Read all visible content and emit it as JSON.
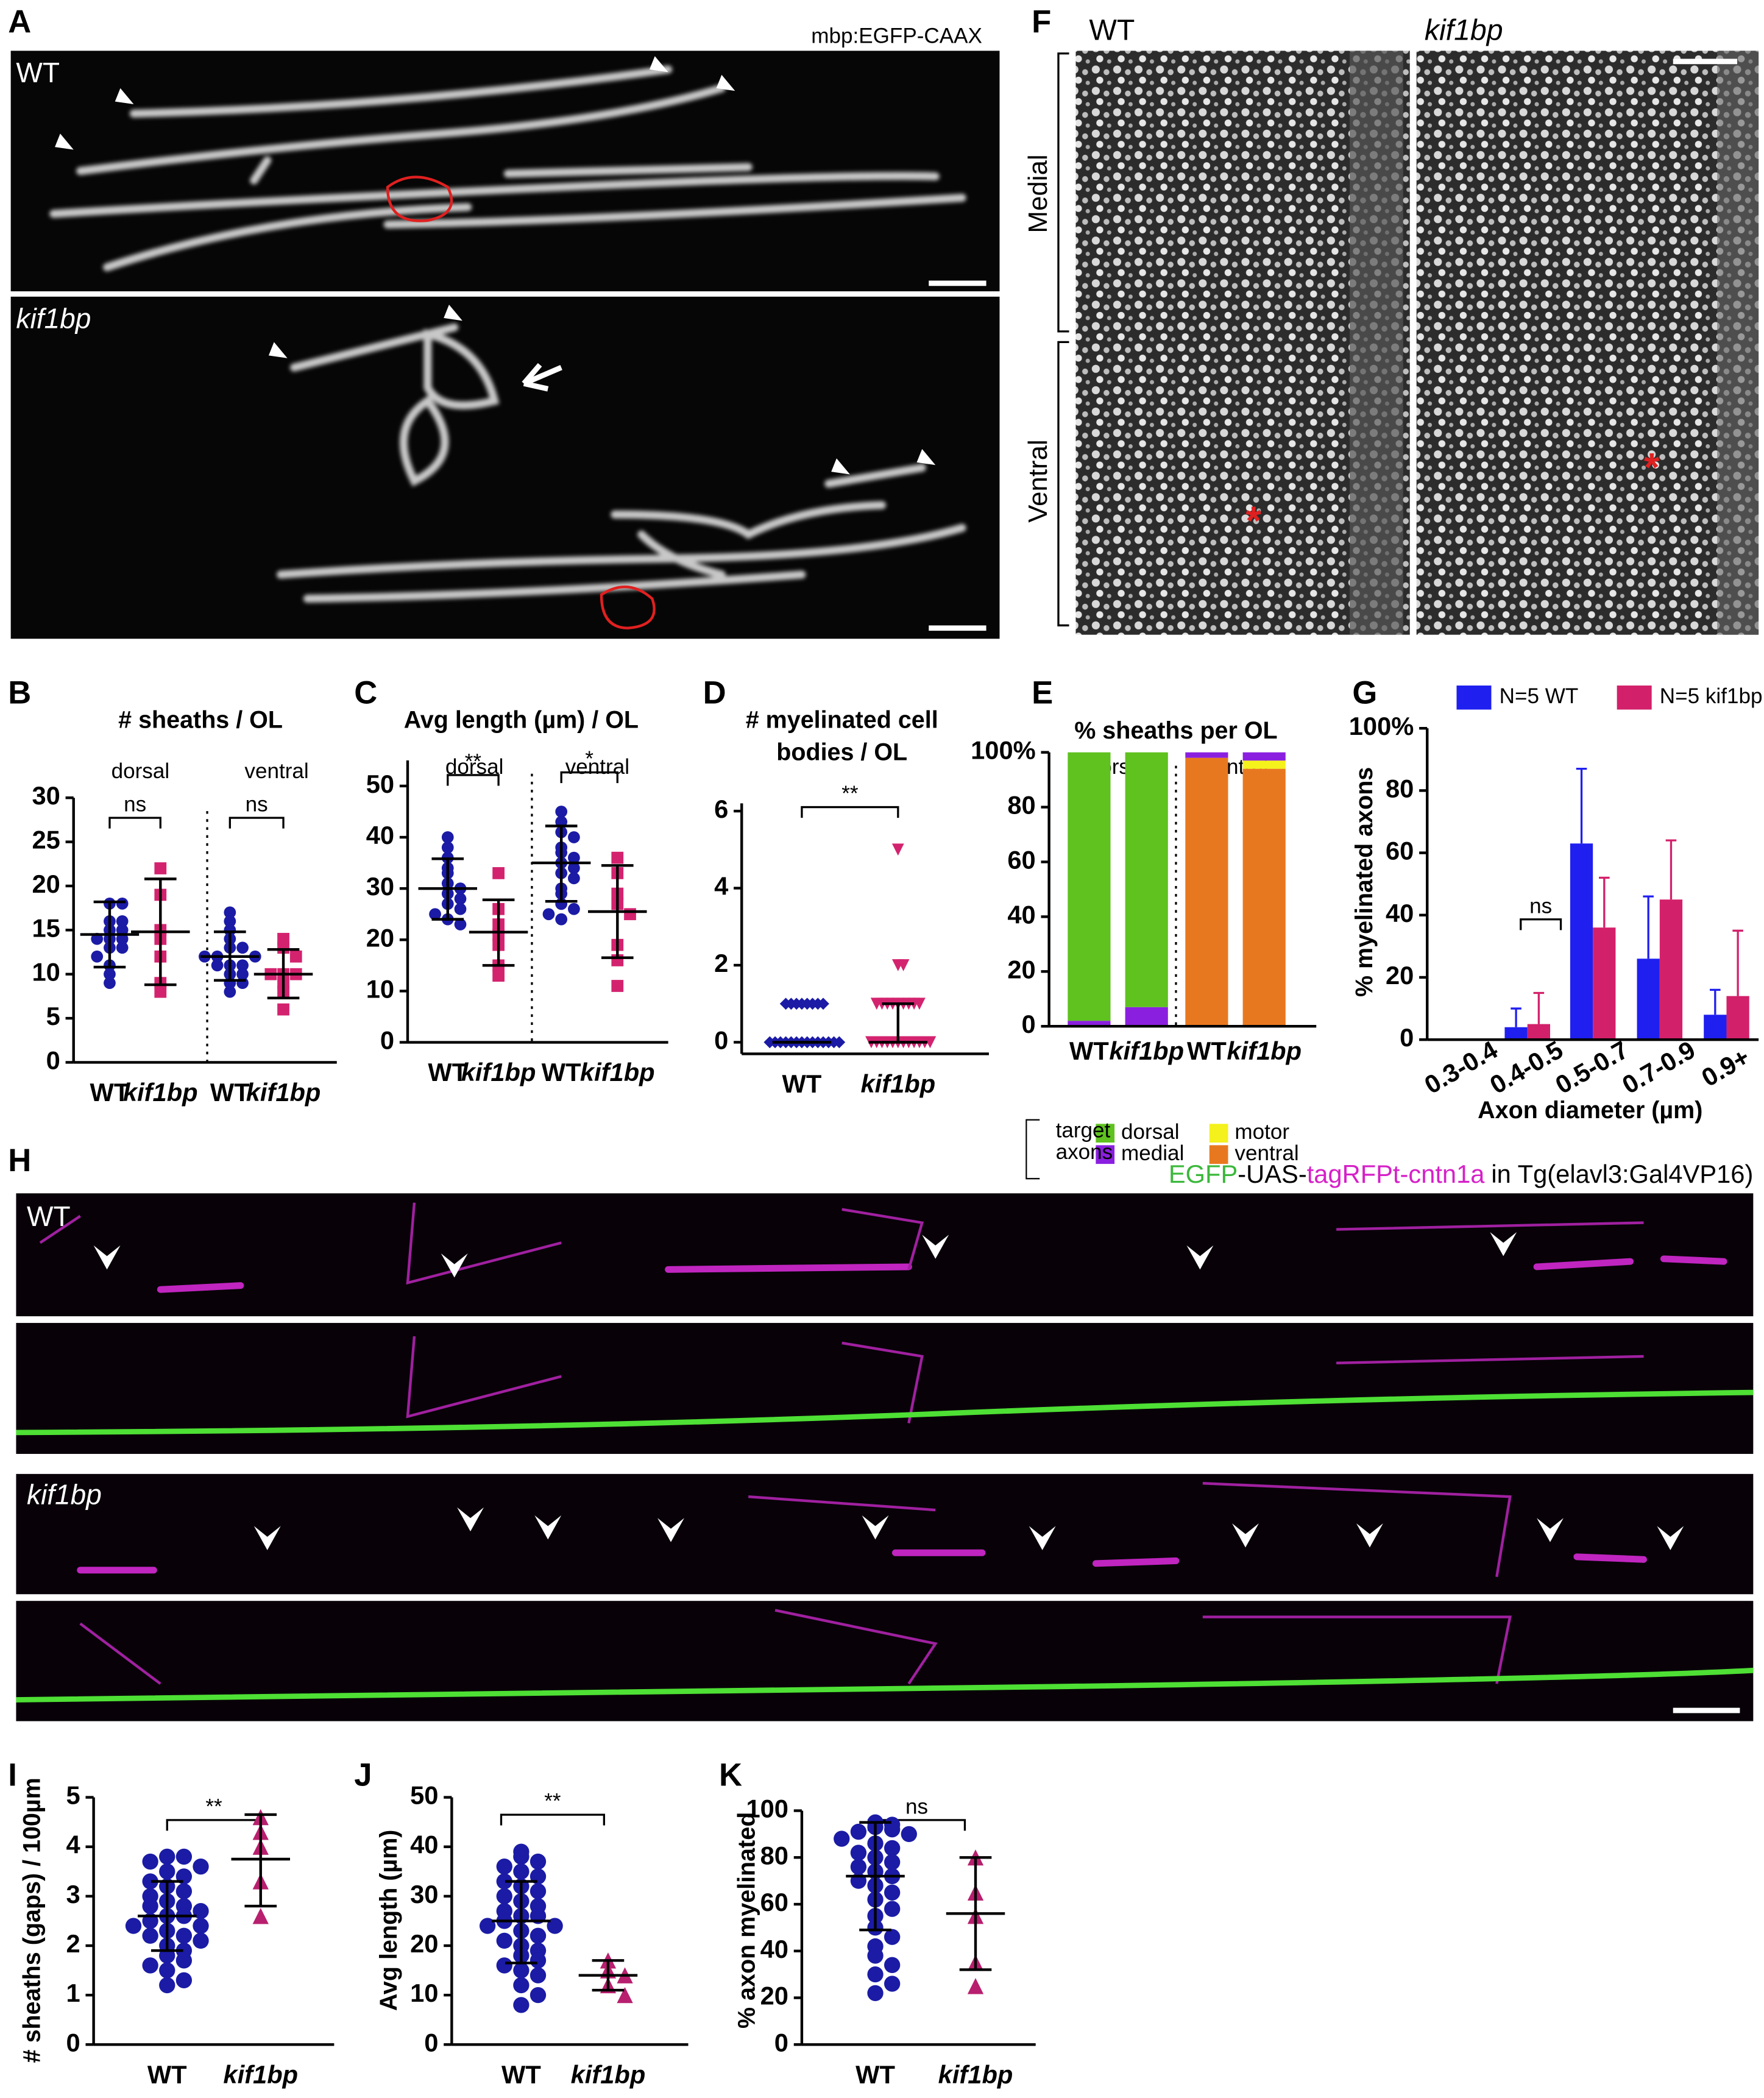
{
  "images": {
    "A": {
      "panel_label": "A",
      "label": "mbp:EGFP-CAAX",
      "top": "WT",
      "bottom": "kif1bp"
    },
    "F": {
      "panel_label": "F",
      "left": "WT",
      "right": "kif1bp",
      "regions": [
        "Medial",
        "Ventral"
      ]
    },
    "H": {
      "panel_label": "H",
      "legend": [
        "EGFP",
        "-UAS-",
        "tagRFPt-cntn1a",
        "in Tg(elavl3:Gal4VP16)"
      ],
      "top": "WT",
      "bottom": "kif1bp"
    }
  },
  "chart_data": [
    {
      "type": "scatter",
      "panel_label": "B",
      "title": "# sheaths / OL",
      "group_labels": [
        "dorsal",
        "ventral"
      ],
      "ylim": [
        0,
        30
      ],
      "yticks": [
        0,
        5,
        10,
        15,
        20,
        25,
        30
      ],
      "annotations": [
        "ns",
        "ns"
      ],
      "groups": [
        {
          "name": "WT",
          "color": "#1b1ba6",
          "marker": "circle",
          "points": [
            18,
            18,
            16,
            16,
            15,
            15,
            14,
            14,
            14,
            13,
            13,
            12,
            11,
            10,
            9
          ],
          "center": 14.5,
          "low": 10.8,
          "high": 18.2
        },
        {
          "name": "kif1bp",
          "color": "#d3236f",
          "marker": "square",
          "points": [
            22,
            19,
            15,
            14,
            12,
            9,
            8
          ],
          "center": 14.8,
          "low": 8.8,
          "high": 20.8
        },
        {
          "name": "WT",
          "color": "#1b1ba6",
          "marker": "circle",
          "points": [
            17,
            16,
            15,
            14,
            13,
            13,
            12,
            12,
            12,
            11,
            11,
            11,
            10,
            10,
            9,
            9,
            8
          ],
          "center": 12,
          "low": 9.3,
          "high": 14.8
        },
        {
          "name": "kif1bp",
          "color": "#d3236f",
          "marker": "square",
          "points": [
            14,
            13,
            12,
            10,
            10,
            10,
            9,
            8,
            6
          ],
          "center": 10,
          "low": 7.3,
          "high": 12.8
        }
      ]
    },
    {
      "type": "scatter",
      "panel_label": "C",
      "title": "Avg length (µm) / OL",
      "group_labels": [
        "dorsal",
        "ventral"
      ],
      "ylim": [
        0,
        55
      ],
      "yticks": [
        0,
        10,
        20,
        30,
        40,
        50
      ],
      "annotations": [
        "**",
        "*"
      ],
      "groups": [
        {
          "name": "WT",
          "color": "#1b1ba6",
          "marker": "circle",
          "points": [
            40,
            38,
            36,
            34,
            33,
            31,
            30,
            29,
            28,
            27,
            26,
            25,
            24,
            23
          ],
          "center": 30,
          "low": 24,
          "high": 35.8
        },
        {
          "name": "kif1bp",
          "color": "#d3236f",
          "marker": "square",
          "points": [
            33,
            26,
            23,
            21,
            19,
            15,
            13
          ],
          "center": 21.5,
          "low": 15,
          "high": 27.8
        },
        {
          "name": "WT",
          "color": "#1b1ba6",
          "marker": "circle",
          "points": [
            45,
            43,
            41,
            40,
            38,
            37,
            36,
            35,
            34,
            33,
            32,
            30,
            29,
            27,
            26,
            25,
            24
          ],
          "center": 35,
          "low": 27.5,
          "high": 42.2
        },
        {
          "name": "kif1bp",
          "color": "#d3236f",
          "marker": "square",
          "points": [
            36,
            33,
            29,
            27,
            25,
            19,
            16,
            11
          ],
          "center": 25.5,
          "low": 16.5,
          "high": 34.5
        }
      ]
    },
    {
      "type": "scatter",
      "panel_label": "D",
      "title": [
        "# myelinated cell",
        "bodies / OL"
      ],
      "ylim": [
        -0.3,
        6.2
      ],
      "yticks": [
        0,
        2,
        4,
        6
      ],
      "annotations": [
        "**"
      ],
      "groups": [
        {
          "name": "WT",
          "color": "#1b1ba6",
          "marker": "diamond",
          "points": [
            1,
            1,
            1,
            1,
            1,
            1,
            1,
            1,
            0,
            0,
            0,
            0,
            0,
            0,
            0,
            0,
            0,
            0,
            0,
            0,
            0,
            0
          ],
          "center": 0,
          "low": 0,
          "high": 0
        },
        {
          "name": "kif1bp",
          "color": "#d3236f",
          "marker": "triangle-down",
          "points": [
            5,
            2,
            2,
            1,
            1,
            1,
            1,
            1,
            1,
            1,
            1,
            1,
            0,
            0,
            0,
            0,
            0,
            0,
            0,
            0,
            0,
            0,
            0,
            0
          ],
          "center": 0,
          "low": 0,
          "high": 1
        }
      ]
    },
    {
      "type": "bar",
      "stacked": true,
      "panel_label": "E",
      "title": "% sheaths per OL",
      "group_labels": [
        "dorsal",
        "ventral"
      ],
      "legend_title": [
        "target",
        "axons"
      ],
      "categories": [
        "WT",
        "kif1bp",
        "WT",
        "kif1bp"
      ],
      "ylim": [
        0,
        100
      ],
      "yticks": [
        0,
        20,
        40,
        60,
        80,
        {
          "value": 100,
          "label": "100%"
        }
      ],
      "series": [
        {
          "name": "ventral",
          "color": "#e8781f",
          "values": [
            0,
            0,
            98,
            94
          ]
        },
        {
          "name": "motor",
          "color": "#f4f11c",
          "values": [
            0,
            0,
            0,
            3
          ]
        },
        {
          "name": "medial",
          "color": "#8b1fe0",
          "values": [
            2,
            7,
            2,
            3
          ]
        },
        {
          "name": "dorsal",
          "color": "#5fc21f",
          "values": [
            98,
            93,
            0,
            0
          ]
        }
      ]
    },
    {
      "type": "bar",
      "panel_label": "G",
      "ylabel": "% myelinated axons",
      "xlabel": "Axon diameter (µm)",
      "annotations": [
        "ns"
      ],
      "categories": [
        "0.3-0.4",
        "0.4-0.5",
        "0.5-0.7",
        "0.7-0.9",
        "0.9+"
      ],
      "ylim": [
        0,
        100
      ],
      "yticks": [
        0,
        20,
        40,
        60,
        80,
        {
          "value": 100,
          "label": "100%"
        }
      ],
      "series": [
        {
          "name": "N=5 WT",
          "color": "#1f1ff0",
          "values": [
            0,
            4,
            63,
            26,
            8
          ],
          "errors": [
            0,
            6,
            24,
            20,
            8
          ]
        },
        {
          "name": "N=5 kif1bp",
          "color": "#d3206a",
          "values": [
            0,
            5,
            36,
            45,
            14
          ],
          "errors": [
            0,
            10,
            16,
            19,
            21
          ]
        }
      ]
    },
    {
      "type": "scatter",
      "panel_label": "I",
      "ylabel": "# sheaths (gaps) / 100µm",
      "ylim": [
        0,
        5
      ],
      "yticks": [
        0,
        1,
        2,
        3,
        4,
        5
      ],
      "annotations": [
        "**"
      ],
      "groups": [
        {
          "name": "WT",
          "color": "#1b1ba6",
          "marker": "circle",
          "points": [
            3.8,
            3.8,
            3.7,
            3.6,
            3.5,
            3.4,
            3.3,
            3.2,
            3.1,
            3,
            2.9,
            2.8,
            2.8,
            2.7,
            2.6,
            2.6,
            2.5,
            2.4,
            2.4,
            2.3,
            2.2,
            2.2,
            2.1,
            2,
            1.9,
            1.8,
            1.7,
            1.6,
            1.5,
            1.3,
            1.2
          ],
          "center": 2.6,
          "low": 1.9,
          "high": 3.3
        },
        {
          "name": "kif1bp",
          "color": "#b81f6e",
          "marker": "triangle",
          "points": [
            4.6,
            4.3,
            4,
            3.3,
            2.6
          ],
          "center": 3.75,
          "low": 2.8,
          "high": 4.65
        }
      ]
    },
    {
      "type": "scatter",
      "panel_label": "J",
      "ylabel": "Avg length (µm)",
      "ylim": [
        0,
        50
      ],
      "yticks": [
        0,
        10,
        20,
        30,
        40,
        50
      ],
      "annotations": [
        "**"
      ],
      "groups": [
        {
          "name": "WT",
          "color": "#1b1ba6",
          "marker": "circle",
          "points": [
            39,
            38,
            37,
            36,
            35,
            34,
            33,
            32,
            31,
            30,
            29,
            28,
            27,
            26,
            26,
            25,
            24,
            24,
            23,
            22,
            21,
            20,
            19,
            18,
            17,
            16,
            15,
            14,
            12,
            10,
            8
          ],
          "center": 25,
          "low": 16.5,
          "high": 33
        },
        {
          "name": "kif1bp",
          "color": "#b81f6e",
          "marker": "triangle",
          "points": [
            17,
            15,
            14,
            12,
            10
          ],
          "center": 14,
          "low": 11,
          "high": 17
        }
      ]
    },
    {
      "type": "scatter",
      "panel_label": "K",
      "ylabel": "% axon myelinated",
      "ylim": [
        0,
        100
      ],
      "yticks": [
        0,
        20,
        40,
        60,
        80,
        100
      ],
      "annotations": [
        "ns"
      ],
      "groups": [
        {
          "name": "WT",
          "color": "#1b1ba6",
          "marker": "circle",
          "points": [
            95,
            94,
            93,
            92,
            91,
            90,
            88,
            86,
            84,
            82,
            80,
            78,
            76,
            74,
            72,
            70,
            68,
            65,
            62,
            58,
            55,
            50,
            46,
            42,
            38,
            34,
            30,
            26,
            22
          ],
          "center": 72,
          "low": 49,
          "high": 95
        },
        {
          "name": "kif1bp",
          "color": "#b81f6e",
          "marker": "triangle",
          "points": [
            80,
            65,
            55,
            35,
            25
          ],
          "center": 56,
          "low": 32,
          "high": 80
        }
      ]
    }
  ]
}
